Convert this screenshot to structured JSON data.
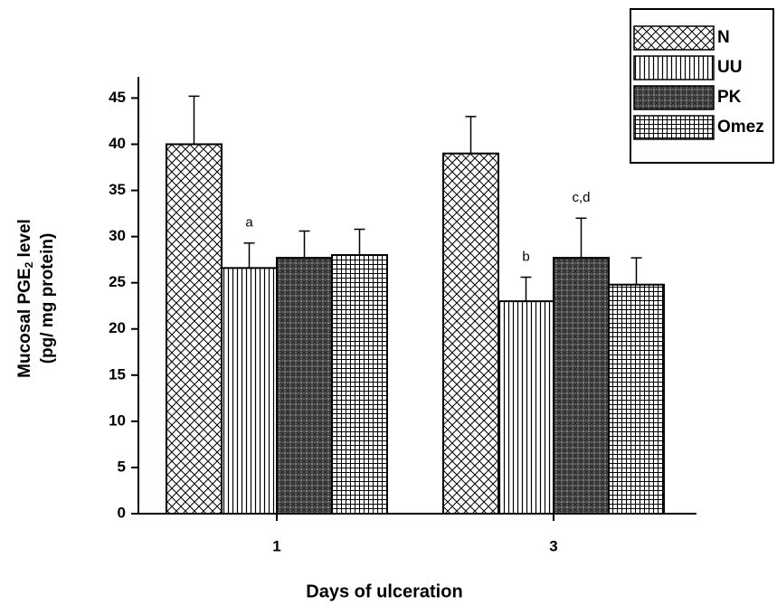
{
  "chart_data": {
    "type": "bar",
    "xlabel": "Days of ulceration",
    "ylabel": {
      "main": "Mucosal PGE",
      "sub": "2",
      "rest": " level"
    },
    "ylabel2": "(pg/ mg protein)",
    "categories": [
      "1",
      "3"
    ],
    "series": [
      {
        "name": "N",
        "color": "#000000",
        "pattern": "crosshatch",
        "values": [
          40,
          39
        ],
        "errors": [
          5.2,
          4
        ]
      },
      {
        "name": "UU",
        "color": "#000000",
        "pattern": "vertical",
        "values": [
          26.6,
          23
        ],
        "errors": [
          2.7,
          2.6
        ]
      },
      {
        "name": "PK",
        "color": "#000000",
        "pattern": "dots",
        "values": [
          27.7,
          27.7
        ],
        "errors": [
          2.9,
          4.3
        ]
      },
      {
        "name": "Omez",
        "color": "#000000",
        "pattern": "grid",
        "values": [
          28,
          24.8
        ],
        "errors": [
          2.8,
          2.9
        ]
      }
    ],
    "annotations": [
      {
        "text": "a",
        "series": 1,
        "category": 0
      },
      {
        "text": "b",
        "series": 1,
        "category": 1
      },
      {
        "text": "c,d",
        "series": 2,
        "category": 1
      }
    ],
    "ylim": [
      0,
      47
    ],
    "yticks": [
      0,
      5,
      10,
      15,
      20,
      25,
      30,
      35,
      40,
      45
    ],
    "legend": "top-right"
  }
}
